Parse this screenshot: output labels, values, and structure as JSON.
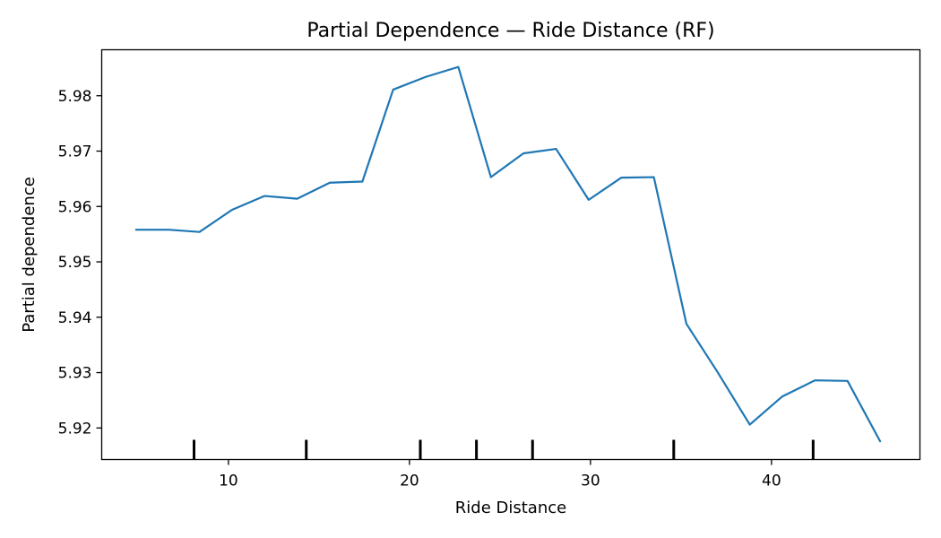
{
  "chart_data": {
    "type": "line",
    "title": "Partial Dependence — Ride Distance (RF)",
    "xlabel": "Ride Distance",
    "ylabel": "Partial dependence",
    "xlim": [
      3.0,
      48.2
    ],
    "ylim": [
      5.9143,
      5.9883
    ],
    "xticks": [
      10,
      20,
      30,
      40
    ],
    "yticks": [
      5.92,
      5.93,
      5.94,
      5.95,
      5.96,
      5.97,
      5.98
    ],
    "xtick_labels": [
      "10",
      "20",
      "30",
      "40"
    ],
    "ytick_labels": [
      "5.92",
      "5.93",
      "5.94",
      "5.95",
      "5.96",
      "5.97",
      "5.98"
    ],
    "grid": false,
    "line_color": "#1f77b4",
    "series": [
      {
        "x": [
          4.9,
          6.7,
          8.4,
          10.2,
          12.0,
          13.8,
          15.6,
          17.4,
          19.1,
          20.9,
          22.7,
          24.5,
          26.3,
          28.1,
          29.9,
          31.7,
          33.5,
          35.3,
          37.0,
          38.8,
          40.6,
          42.4,
          44.2,
          46.0
        ],
        "y": [
          5.9558,
          5.9558,
          5.9554,
          5.9594,
          5.9619,
          5.9614,
          5.9643,
          5.9645,
          5.9811,
          5.9834,
          5.9852,
          5.9653,
          5.9696,
          5.9704,
          5.9612,
          5.9652,
          5.9653,
          5.9388,
          5.9302,
          5.9206,
          5.9257,
          5.9286,
          5.9285,
          5.9176
        ]
      }
    ],
    "rug_x": [
      8.1,
      14.3,
      20.6,
      23.7,
      26.8,
      34.6,
      42.3
    ]
  }
}
